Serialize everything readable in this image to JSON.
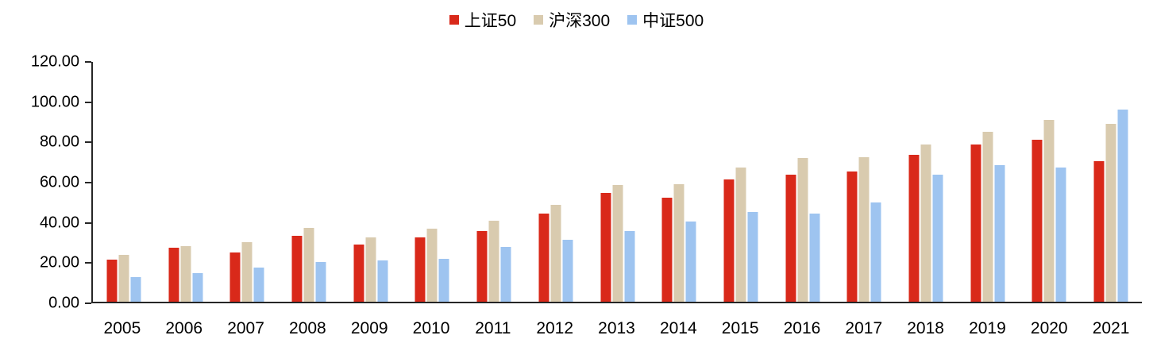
{
  "chart_data": {
    "type": "bar",
    "title": "",
    "categories": [
      "2005",
      "2006",
      "2007",
      "2008",
      "2009",
      "2010",
      "2011",
      "2012",
      "2013",
      "2014",
      "2015",
      "2016",
      "2017",
      "2018",
      "2019",
      "2020",
      "2021"
    ],
    "series": [
      {
        "name": "上证50",
        "color": "#D9291A",
        "values": [
          21.0,
          27.0,
          24.5,
          33.0,
          28.5,
          32.0,
          35.5,
          44.0,
          54.5,
          52.0,
          61.0,
          63.5,
          65.0,
          73.5,
          78.5,
          81.0,
          70.5
        ]
      },
      {
        "name": "沪深300",
        "color": "#D9CBAF",
        "values": [
          23.5,
          28.0,
          30.0,
          37.0,
          32.0,
          36.5,
          40.5,
          48.5,
          58.5,
          59.0,
          67.0,
          72.0,
          72.5,
          78.5,
          85.0,
          91.0,
          89.0
        ]
      },
      {
        "name": "中证500",
        "color": "#9EC4F0",
        "values": [
          12.5,
          14.5,
          17.0,
          20.0,
          20.5,
          21.5,
          27.5,
          31.0,
          35.5,
          40.0,
          45.0,
          44.0,
          49.5,
          63.5,
          68.5,
          67.0,
          96.0
        ]
      }
    ],
    "xlabel": "",
    "ylabel": "",
    "ylim": [
      0,
      120
    ],
    "ytick_step": 20,
    "ytick_labels": [
      "0.00",
      "20.00",
      "40.00",
      "60.00",
      "80.00",
      "100.00",
      "120.00"
    ],
    "grid": false,
    "legend_position": "top-center",
    "axis_color": "#262626"
  }
}
